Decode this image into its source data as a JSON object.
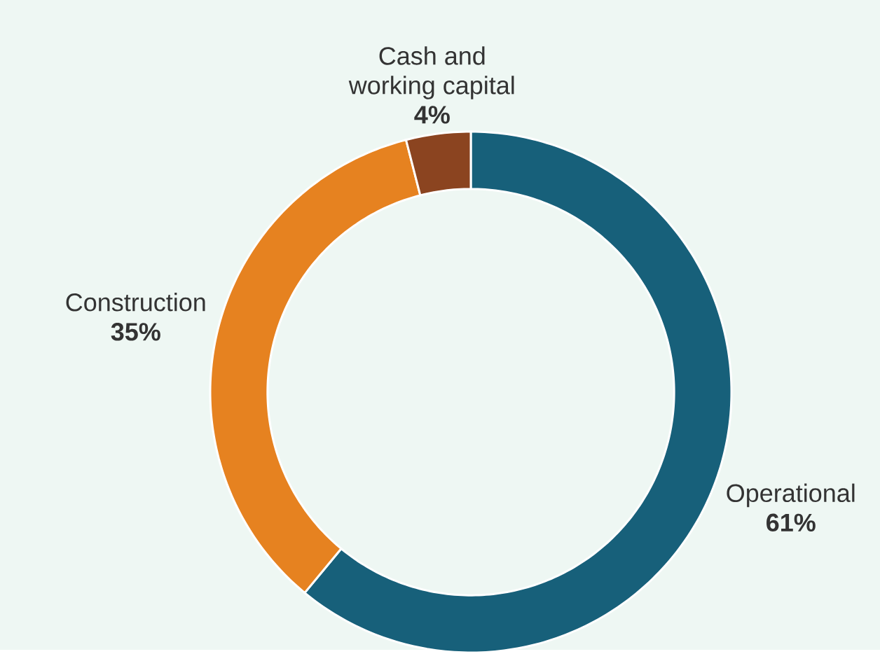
{
  "chart_data": {
    "type": "donut",
    "categories": [
      "Operational",
      "Construction",
      "Cash and working capital"
    ],
    "values": [
      61,
      35,
      4
    ],
    "colors": [
      "#17607a",
      "#e68220",
      "#8b4420"
    ],
    "value_labels": [
      "61%",
      "35%",
      "4%"
    ],
    "legend": false
  }
}
